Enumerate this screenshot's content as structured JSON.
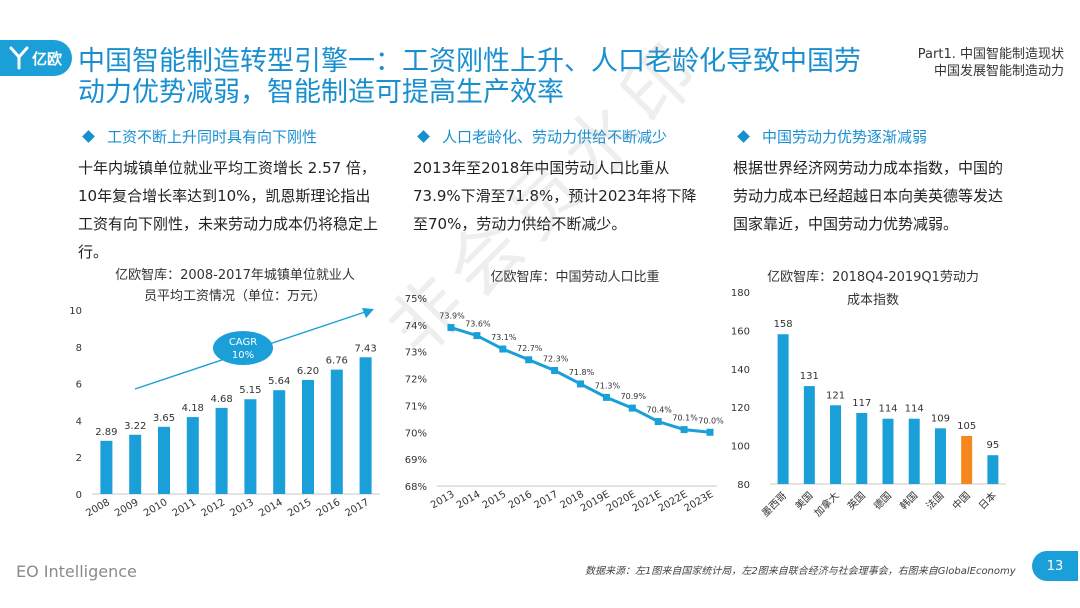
{
  "logo": {
    "text": "亿欧"
  },
  "title": "中国智能制造转型引擎一：工资刚性上升、人口老龄化导致中国劳动力优势减弱，智能制造可提高生产效率",
  "part": {
    "line1": "Part1. 中国智能制造现状",
    "line2": "中国发展智能制造动力"
  },
  "columns": [
    {
      "heading": "工资不断上升同时具有向下刚性",
      "body": "十年内城镇单位就业平均工资增长 2.57 倍，10年复合增长率达到10%，凯恩斯理论指出工资有向下刚性，未来劳动力成本仍将稳定上行。"
    },
    {
      "heading": "人口老龄化、劳动力供给不断减少",
      "body": "2013年至2018年中国劳动人口比重从73.9%下滑至71.8%，预计2023年将下降至70%，劳动力供给不断减少。"
    },
    {
      "heading": "中国劳动力优势逐渐减弱",
      "body": "根据世界经济网劳动力成本指数，中国的劳动力成本已经超越日本向美英德等发达国家靠近，中国劳动力优势减弱。"
    }
  ],
  "watermark": "非会员水印",
  "footer": {
    "brand": "EO Intelligence",
    "source": "数据来源：左1图来自国家统计局，左2图来自联合经济与社会理事会，右图来自GlobalEconomy",
    "page": "13"
  },
  "colors": {
    "accent": "#1a8fd0",
    "bar": "#1a9fd9",
    "highlight": "#f5871f",
    "line": "#1a9fd9"
  },
  "chart_data": [
    {
      "type": "bar",
      "title": "亿欧智库：2008-2017年城镇单位就业人员平均工资情况（单位：万元）",
      "title_lines": [
        "亿欧智库：2008-2017年城镇单位就业人",
        "员平均工资情况（单位：万元）"
      ],
      "categories": [
        "2008",
        "2009",
        "2010",
        "2011",
        "2012",
        "2013",
        "2014",
        "2015",
        "2016",
        "2017"
      ],
      "values": [
        2.89,
        3.22,
        3.65,
        4.18,
        4.68,
        5.15,
        5.64,
        6.2,
        6.76,
        7.43
      ],
      "labels": [
        "2.89",
        "3.22",
        "3.65",
        "4.18",
        "4.68",
        "5.15",
        "5.64",
        "6.20",
        "6.76",
        "7.43"
      ],
      "ylim": [
        0,
        10
      ],
      "yticks": [
        0,
        2,
        4,
        6,
        8,
        10
      ],
      "annotation": {
        "line1": "CAGR",
        "line2": "10%"
      }
    },
    {
      "type": "line",
      "title": "亿欧智库：中国劳动人口比重",
      "categories": [
        "2013",
        "2014",
        "2015",
        "2016",
        "2017",
        "2018",
        "2019E",
        "2020E",
        "2021E",
        "2022E",
        "2023E"
      ],
      "values": [
        73.9,
        73.6,
        73.1,
        72.7,
        72.3,
        71.8,
        71.3,
        70.9,
        70.4,
        70.1,
        70.0
      ],
      "labels": [
        "73.9%",
        "73.6%",
        "73.1%",
        "72.7%",
        "72.3%",
        "71.8%",
        "71.3%",
        "70.9%",
        "70.4%",
        "70.1%",
        "70.0%"
      ],
      "ylim": [
        68,
        75
      ],
      "yticks": [
        "68%",
        "69%",
        "70%",
        "71%",
        "72%",
        "73%",
        "74%",
        "75%"
      ]
    },
    {
      "type": "bar",
      "title": "亿欧智库：2018Q4-2019Q1劳动力成本指数",
      "title_lines": [
        "亿欧智库：2018Q4-2019Q1劳动力",
        "成本指数"
      ],
      "categories": [
        "墨西哥",
        "美国",
        "加拿大",
        "英国",
        "德国",
        "韩国",
        "法国",
        "中国",
        "日本"
      ],
      "values": [
        158,
        131,
        121,
        117,
        114,
        114,
        109,
        105,
        95
      ],
      "highlight": "中国",
      "ylim": [
        80,
        180
      ],
      "yticks": [
        80,
        100,
        120,
        140,
        160,
        180
      ]
    }
  ]
}
